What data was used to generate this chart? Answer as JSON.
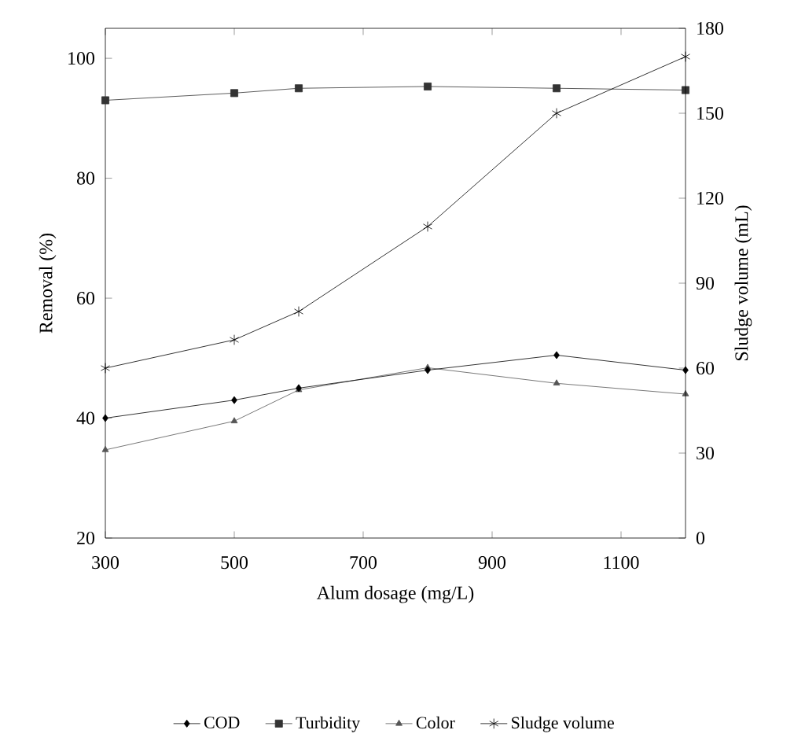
{
  "chart_data": {
    "type": "line",
    "xlabel": "Alum dosage (mg/L)",
    "ylabel": "Removal (%)",
    "y2label": "Sludge volume (mL)",
    "x": [
      300,
      500,
      600,
      800,
      1000,
      1200
    ],
    "xlim": [
      300,
      1200
    ],
    "xticks": [
      300,
      500,
      700,
      900,
      1100
    ],
    "ylim": [
      20,
      105
    ],
    "yticks": [
      20,
      40,
      60,
      80,
      100
    ],
    "y2lim": [
      0,
      180
    ],
    "y2ticks": [
      0,
      30,
      60,
      90,
      120,
      150,
      180
    ],
    "legend": "bottom",
    "grid": false,
    "line_style": "solid",
    "series": [
      {
        "name": "COD",
        "color": "#000000",
        "marker": "diamond",
        "values": [
          40,
          43,
          45,
          48,
          50.5,
          48
        ]
      },
      {
        "name": "Turbidity",
        "color": "#333333",
        "marker": "square",
        "values": [
          93,
          94.2,
          95,
          95.3,
          95,
          94.7
        ]
      },
      {
        "name": "Color",
        "color": "#555555",
        "marker": "triangle",
        "values": [
          34.7,
          39.5,
          44.7,
          48.4,
          45.8,
          44
        ]
      },
      {
        "name": "Sludge volume",
        "color": "#000000",
        "marker": "cross",
        "axis": "y2",
        "values": [
          60,
          70,
          80,
          110,
          150,
          170
        ]
      }
    ]
  }
}
